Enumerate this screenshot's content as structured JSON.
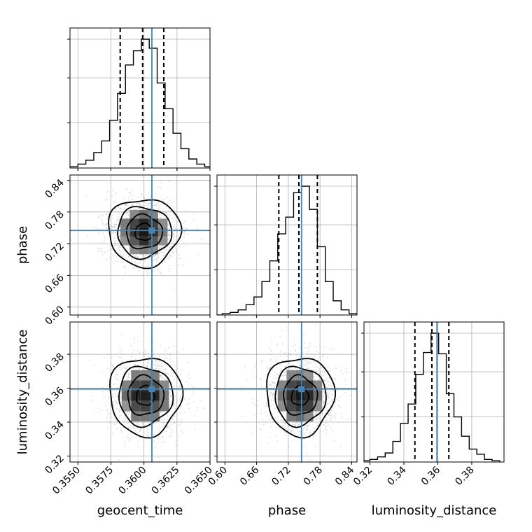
{
  "chart_data": {
    "type": "corner",
    "parameters": [
      "geocent_time",
      "phase",
      "luminosity_distance"
    ],
    "truths": {
      "geocent_time": 0.3606,
      "phase": 0.745,
      "luminosity_distance": 0.3595
    },
    "quantiles_1d": {
      "geocent_time": [
        0.3582,
        0.3599,
        0.3615
      ],
      "phase": [
        0.702,
        0.74,
        0.775
      ],
      "luminosity_distance": [
        0.3465,
        0.3565,
        0.3665
      ]
    },
    "ranges": {
      "geocent_time": [
        0.3544,
        0.365
      ],
      "phase": [
        0.585,
        0.85
      ],
      "luminosity_distance": [
        0.3165,
        0.399
      ]
    },
    "ticks": {
      "geocent_time": [
        "0.3550",
        "0.3575",
        "0.3600",
        "0.3625",
        "0.3650"
      ],
      "phase": [
        "0.60",
        "0.66",
        "0.72",
        "0.78",
        "0.84"
      ],
      "luminosity_distance": [
        "0.32",
        "0.34",
        "0.36",
        "0.38"
      ]
    },
    "histograms": {
      "geocent_time": {
        "bin_edges": [
          0.3544,
          0.355,
          0.3556,
          0.3562,
          0.3568,
          0.3574,
          0.358,
          0.3586,
          0.3592,
          0.3598,
          0.3604,
          0.361,
          0.3616,
          0.3622,
          0.3628,
          0.3634,
          0.364,
          0.3646,
          0.3652
        ],
        "counts": [
          0.01,
          0.03,
          0.06,
          0.12,
          0.21,
          0.37,
          0.58,
          0.8,
          0.91,
          1.0,
          0.93,
          0.66,
          0.46,
          0.27,
          0.15,
          0.07,
          0.03,
          0.01
        ]
      },
      "phase": {
        "bin_edges": [
          0.58,
          0.595,
          0.61,
          0.625,
          0.64,
          0.655,
          0.67,
          0.685,
          0.7,
          0.715,
          0.73,
          0.745,
          0.76,
          0.775,
          0.79,
          0.805,
          0.82,
          0.835,
          0.85
        ],
        "counts": [
          0.0,
          0.01,
          0.02,
          0.04,
          0.08,
          0.14,
          0.26,
          0.42,
          0.63,
          0.76,
          0.95,
          1.0,
          0.82,
          0.53,
          0.26,
          0.11,
          0.04,
          0.01
        ]
      },
      "luminosity_distance": {
        "bin_edges": [
          0.3155,
          0.32,
          0.3245,
          0.329,
          0.3335,
          0.338,
          0.3425,
          0.347,
          0.3515,
          0.356,
          0.3605,
          0.365,
          0.3695,
          0.374,
          0.3785,
          0.383,
          0.3875,
          0.392,
          0.3965
        ],
        "counts": [
          0.01,
          0.02,
          0.04,
          0.07,
          0.16,
          0.3,
          0.45,
          0.68,
          0.85,
          1.0,
          0.84,
          0.53,
          0.35,
          0.2,
          0.1,
          0.06,
          0.02,
          0.01
        ]
      }
    },
    "contours_2d": [
      {
        "x": "geocent_time",
        "y": "phase",
        "center": [
          0.36,
          0.742
        ],
        "sigma": [
          0.0013,
          0.0305
        ],
        "levels": [
          0.5,
          1.0,
          1.5,
          2.0
        ]
      },
      {
        "x": "geocent_time",
        "y": "luminosity_distance",
        "center": [
          0.3601,
          0.3555
        ],
        "sigma": [
          0.0013,
          0.011
        ],
        "levels": [
          0.5,
          1.0,
          1.5,
          2.0
        ]
      },
      {
        "x": "phase",
        "y": "luminosity_distance",
        "center": [
          0.742,
          0.3555
        ],
        "sigma": [
          0.0305,
          0.011
        ],
        "levels": [
          0.5,
          1.0,
          1.5,
          2.0
        ]
      }
    ],
    "grid": true
  }
}
